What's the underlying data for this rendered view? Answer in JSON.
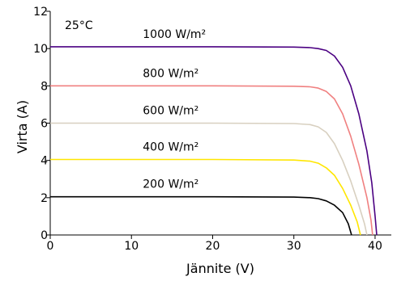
{
  "chart_data": {
    "type": "line",
    "title": "",
    "xlabel": "Jännite (V)",
    "ylabel": "Virta (A)",
    "xlim": [
      0,
      42
    ],
    "ylim": [
      0,
      12
    ],
    "xticks": [
      0,
      10,
      20,
      30,
      40
    ],
    "yticks": [
      0,
      2,
      4,
      6,
      8,
      10,
      12
    ],
    "temperature_label": "25°C",
    "grid": false,
    "series": [
      {
        "name": "1000 W/m²",
        "color": "#4b0082",
        "points": [
          [
            0,
            10.1
          ],
          [
            20,
            10.1
          ],
          [
            30,
            10.08
          ],
          [
            32,
            10.05
          ],
          [
            33,
            10.0
          ],
          [
            34,
            9.9
          ],
          [
            35,
            9.6
          ],
          [
            36,
            9.0
          ],
          [
            37,
            8.0
          ],
          [
            38,
            6.5
          ],
          [
            39,
            4.5
          ],
          [
            39.6,
            2.8
          ],
          [
            40.0,
            1.0
          ],
          [
            40.2,
            0.0
          ]
        ]
      },
      {
        "name": "800 W/m²",
        "color": "#f08080",
        "points": [
          [
            0,
            8.0
          ],
          [
            20,
            8.0
          ],
          [
            30,
            7.98
          ],
          [
            32,
            7.95
          ],
          [
            33,
            7.88
          ],
          [
            34,
            7.7
          ],
          [
            35,
            7.3
          ],
          [
            36,
            6.5
          ],
          [
            37,
            5.3
          ],
          [
            38,
            3.8
          ],
          [
            39,
            2.0
          ],
          [
            39.5,
            0.8
          ],
          [
            39.7,
            0.0
          ]
        ]
      },
      {
        "name": "600 W/m²",
        "color": "#d8d0c0",
        "points": [
          [
            0,
            6.0
          ],
          [
            20,
            6.0
          ],
          [
            30,
            5.98
          ],
          [
            32,
            5.92
          ],
          [
            33,
            5.8
          ],
          [
            34,
            5.5
          ],
          [
            35,
            4.9
          ],
          [
            36,
            4.0
          ],
          [
            37,
            2.9
          ],
          [
            38,
            1.6
          ],
          [
            38.7,
            0.6
          ],
          [
            39.0,
            0.0
          ]
        ]
      },
      {
        "name": "400 W/m²",
        "color": "#ffe600",
        "points": [
          [
            0,
            4.05
          ],
          [
            20,
            4.05
          ],
          [
            30,
            4.02
          ],
          [
            32,
            3.96
          ],
          [
            33,
            3.85
          ],
          [
            34,
            3.6
          ],
          [
            35,
            3.2
          ],
          [
            36,
            2.5
          ],
          [
            37,
            1.6
          ],
          [
            37.8,
            0.7
          ],
          [
            38.2,
            0.0
          ]
        ]
      },
      {
        "name": "200 W/m²",
        "color": "#000000",
        "points": [
          [
            0,
            2.05
          ],
          [
            20,
            2.05
          ],
          [
            30,
            2.03
          ],
          [
            32,
            2.0
          ],
          [
            33,
            1.95
          ],
          [
            34,
            1.83
          ],
          [
            35,
            1.6
          ],
          [
            36,
            1.2
          ],
          [
            36.7,
            0.6
          ],
          [
            37.1,
            0.0
          ]
        ]
      }
    ]
  }
}
